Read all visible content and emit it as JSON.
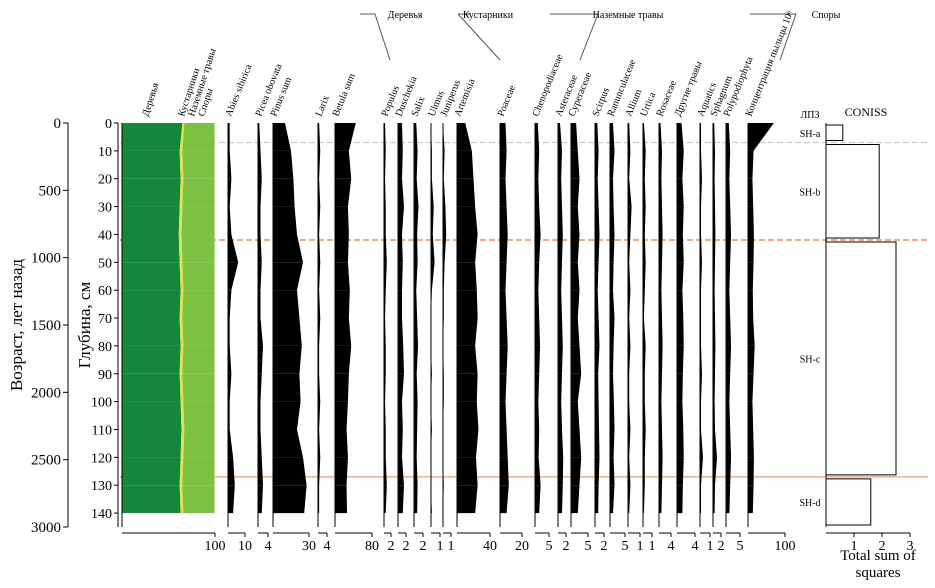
{
  "chart_data": {
    "type": "pollen",
    "y_title": "Глубина, см",
    "y2_title": "Возраст, лет назад",
    "ylim": [
      0,
      145
    ],
    "yticks": [
      0,
      10,
      20,
      30,
      40,
      50,
      60,
      70,
      80,
      90,
      100,
      110,
      120,
      130,
      140
    ],
    "y2lim": [
      0,
      3000
    ],
    "y2ticks": [
      0,
      500,
      1000,
      1500,
      2000,
      2500,
      3000
    ],
    "depths": [
      0,
      10,
      20,
      30,
      40,
      50,
      60,
      70,
      80,
      90,
      100,
      110,
      120,
      130,
      140
    ],
    "groups": [
      "Деревья",
      "Кустарники",
      "Наземные травы",
      "Споры"
    ],
    "summary": {
      "xlim": [
        0,
        100
      ],
      "xticks": [
        100
      ],
      "series": [
        {
          "name": "Деревья",
          "color": "#14873a",
          "values": [
            65,
            62,
            63,
            62,
            61,
            62,
            63,
            62,
            63,
            62,
            63,
            64,
            63,
            62,
            63
          ]
        },
        {
          "name": "Кустарники",
          "color": "#e3e04a",
          "values": [
            2,
            3,
            3,
            3,
            3,
            3,
            3,
            3,
            3,
            3,
            3,
            3,
            3,
            3,
            3
          ]
        },
        {
          "name": "Наземные травы",
          "color": "#7cc142",
          "values": [
            32,
            34,
            33,
            34,
            35,
            34,
            33,
            34,
            33,
            34,
            33,
            32,
            33,
            34,
            33
          ]
        },
        {
          "name": "Споры",
          "color": "#b5d98a",
          "values": [
            1,
            1,
            1,
            1,
            1,
            1,
            1,
            1,
            1,
            1,
            1,
            1,
            1,
            1,
            1
          ]
        }
      ]
    },
    "panels": [
      {
        "name": "Abies sibirica",
        "xlim": [
          0,
          10
        ],
        "xticks": [
          10
        ],
        "values": [
          1,
          1,
          2,
          1,
          2,
          6,
          2,
          1,
          1,
          2,
          1,
          1,
          3,
          4,
          3
        ]
      },
      {
        "name": "Picea obovata",
        "xlim": [
          0,
          4
        ],
        "xticks": [
          4
        ],
        "values": [
          0.5,
          1,
          1.5,
          1,
          1,
          1.5,
          1,
          1,
          2,
          1.5,
          1,
          1,
          1.5,
          2,
          1.5
        ]
      },
      {
        "name": "Pinus sum",
        "xlim": [
          0,
          30
        ],
        "xticks": [
          30
        ],
        "values": [
          10,
          15,
          17,
          18,
          20,
          25,
          20,
          22,
          24,
          22,
          23,
          20,
          25,
          28,
          26
        ]
      },
      {
        "name": "Larix",
        "xlim": [
          0,
          4
        ],
        "xticks": [
          4
        ],
        "values": [
          0.5,
          1,
          0.5,
          1,
          0.5,
          1,
          0.5,
          1,
          0.5,
          0.5,
          1,
          0.5,
          1,
          0.5,
          0.5
        ]
      },
      {
        "name": "Betula sum",
        "xlim": [
          0,
          80
        ],
        "xticks": [
          80
        ],
        "values": [
          45,
          30,
          35,
          28,
          30,
          28,
          32,
          30,
          35,
          30,
          28,
          25,
          28,
          25,
          26
        ]
      },
      {
        "name": "Populus",
        "xlim": [
          0,
          2
        ],
        "xticks": [
          2
        ],
        "values": [
          0.3,
          0.5,
          0.3,
          0.5,
          0.5,
          0.8,
          0.5,
          0.3,
          0.5,
          0.5,
          0.3,
          0.5,
          0.5,
          0.8,
          0.5
        ]
      },
      {
        "name": "Duschekia",
        "xlim": [
          0,
          2
        ],
        "xticks": [
          2
        ],
        "values": [
          1,
          1.2,
          1,
          1.5,
          1,
          1.2,
          1,
          1,
          1.3,
          1.5,
          1,
          1.2,
          1,
          1.5,
          1.2
        ]
      },
      {
        "name": "Salix",
        "xlim": [
          0,
          2
        ],
        "xticks": [
          2
        ],
        "values": [
          0.5,
          0.8,
          0.6,
          1,
          0.7,
          0.8,
          0.5,
          0.7,
          0.9,
          0.6,
          0.8,
          0.7,
          0.6,
          0.8,
          0.7
        ]
      },
      {
        "name": "Ulmus",
        "xlim": [
          0,
          1
        ],
        "xticks": [
          1
        ],
        "values": [
          0,
          0.1,
          0.1,
          0.3,
          0.2,
          0.4,
          0.1,
          0,
          0,
          0.1,
          0,
          0.1,
          0,
          0,
          0.1
        ]
      },
      {
        "name": "Juniperus",
        "xlim": [
          0,
          1
        ],
        "xticks": [
          1
        ],
        "values": [
          0,
          0.2,
          0.1,
          0.3,
          0.4,
          0.2,
          0.1,
          0.1,
          0,
          0.1,
          0.1,
          0,
          0,
          0.1,
          0
        ]
      },
      {
        "name": "Artemisia",
        "xlim": [
          0,
          40
        ],
        "xticks": [
          40
        ],
        "values": [
          10,
          18,
          20,
          22,
          25,
          22,
          24,
          25,
          22,
          25,
          24,
          26,
          23,
          25,
          22
        ]
      },
      {
        "name": "Poaceae",
        "xlim": [
          0,
          20
        ],
        "xticks": [
          20
        ],
        "values": [
          5,
          6,
          5,
          6,
          7,
          6,
          5,
          6,
          7,
          6,
          5,
          6,
          7,
          8,
          6
        ]
      },
      {
        "name": "Chenopodiaceae",
        "xlim": [
          0,
          5
        ],
        "xticks": [
          5
        ],
        "values": [
          1,
          1.5,
          1.2,
          1.5,
          2,
          1.5,
          1.2,
          1.5,
          1.8,
          1.5,
          1.2,
          1.5,
          1.3,
          2,
          1.5
        ]
      },
      {
        "name": "Asteraceae",
        "xlim": [
          0,
          2
        ],
        "xticks": [
          2
        ],
        "values": [
          0.5,
          1,
          0.8,
          1,
          1.2,
          1,
          0.8,
          1,
          1.2,
          1,
          0.8,
          1,
          1.3,
          1.2,
          1
        ]
      },
      {
        "name": "Cyperaceae",
        "xlim": [
          0,
          5
        ],
        "xticks": [
          5
        ],
        "values": [
          1.5,
          2,
          2.5,
          2,
          2.5,
          2,
          2.5,
          2,
          2.5,
          3,
          2,
          2.5,
          3,
          2.5,
          2
        ]
      },
      {
        "name": "Scirpus",
        "xlim": [
          0,
          2
        ],
        "xticks": [
          2
        ],
        "values": [
          0.5,
          0.8,
          0.6,
          0.8,
          1,
          0.8,
          0.6,
          0.8,
          1,
          0.7,
          0.8,
          0.9,
          1,
          0.8,
          0.7
        ]
      },
      {
        "name": "Ranunculaceae",
        "xlim": [
          0,
          5
        ],
        "xticks": [
          5
        ],
        "values": [
          1,
          1.5,
          1,
          1.2,
          1.5,
          1.2,
          1,
          1.5,
          1.2,
          1,
          1.3,
          1.5,
          1.2,
          1.5,
          1
        ]
      },
      {
        "name": "Allium",
        "xlim": [
          0,
          1
        ],
        "xticks": [
          1
        ],
        "values": [
          0.1,
          0.2,
          0.1,
          0.3,
          0.2,
          0.1,
          0.2,
          0.1,
          0.2,
          0.1,
          0.1,
          0.2,
          0.1,
          0.2,
          0.1
        ]
      },
      {
        "name": "Urtica",
        "xlim": [
          0,
          1
        ],
        "xticks": [
          1
        ],
        "values": [
          0.1,
          0.3,
          0.2,
          0.3,
          0.2,
          0.3,
          0.2,
          0.1,
          0.3,
          0.2,
          0.2,
          0.3,
          0.2,
          0.2,
          0.1
        ]
      },
      {
        "name": "Rosaceae",
        "xlim": [
          0,
          4
        ],
        "xticks": [
          4
        ],
        "values": [
          0.5,
          1,
          0.8,
          1,
          1.2,
          1,
          0.8,
          1,
          1.2,
          1,
          0.8,
          1,
          1.2,
          1,
          0.8
        ]
      },
      {
        "name": "Другие травы",
        "xlim": [
          0,
          4
        ],
        "xticks": [
          4
        ],
        "values": [
          1,
          1.5,
          1.2,
          1.5,
          1.3,
          1.5,
          1.2,
          1.4,
          1.5,
          1.3,
          1.2,
          1.4,
          1.5,
          1.3,
          1.2
        ]
      },
      {
        "name": "Aquatics",
        "xlim": [
          0,
          1
        ],
        "xticks": [
          1
        ],
        "values": [
          0.1,
          0.1,
          0.2,
          0.1,
          0.1,
          0.2,
          0.1,
          0.1,
          0.1,
          0.2,
          0.1,
          0.1,
          0.3,
          0.1,
          0.1
        ]
      },
      {
        "name": "Sphagnum",
        "xlim": [
          0,
          2
        ],
        "xticks": [
          2
        ],
        "values": [
          0.3,
          0.5,
          0.4,
          0.5,
          0.6,
          0.5,
          0.4,
          0.5,
          0.6,
          0.5,
          0.4,
          0.5,
          1,
          0.5,
          0.4
        ]
      },
      {
        "name": "Polypodiophyta",
        "xlim": [
          0,
          5
        ],
        "xticks": [
          5
        ],
        "values": [
          1,
          1.5,
          1.2,
          1.5,
          1.8,
          1.5,
          1.2,
          1.5,
          1.8,
          1.5,
          1.2,
          1.5,
          1.8,
          1.5,
          1.2
        ]
      },
      {
        "name": "Концентрация пыльцы 10⁶",
        "xlim": [
          0,
          100
        ],
        "xticks": [
          100
        ],
        "values": [
          70,
          15,
          12,
          14,
          16,
          15,
          13,
          14,
          18,
          15,
          12,
          14,
          16,
          15,
          13
        ]
      }
    ],
    "zones_title": "ЛПЗ",
    "zones": [
      {
        "label": "SH-a",
        "top": 0,
        "bottom": 7
      },
      {
        "label": "SH-b",
        "top": 7,
        "bottom": 42
      },
      {
        "label": "SH-c",
        "top": 42,
        "bottom": 127
      },
      {
        "label": "SH-d",
        "top": 127,
        "bottom": 145
      }
    ],
    "boundaries": [
      {
        "depth": 7,
        "color": "#cccccc",
        "dashed": true
      },
      {
        "depth": 42,
        "color": "#e07b39",
        "dashed": true
      },
      {
        "depth": 127,
        "color": "#e8a070",
        "dashed": false
      }
    ],
    "coniss": {
      "title": "CONISS",
      "x_title": "Total sum of squares",
      "xlim": [
        0,
        3
      ],
      "xticks": [
        1,
        2,
        3
      ],
      "clusters": [
        {
          "top": 0,
          "bottom": 7,
          "height": 0.6
        },
        {
          "top": 7,
          "bottom": 42,
          "height": 1.9
        },
        {
          "top": 42,
          "bottom": 127,
          "height": 2.5
        },
        {
          "top": 127,
          "bottom": 145,
          "height": 1.6
        }
      ]
    }
  }
}
